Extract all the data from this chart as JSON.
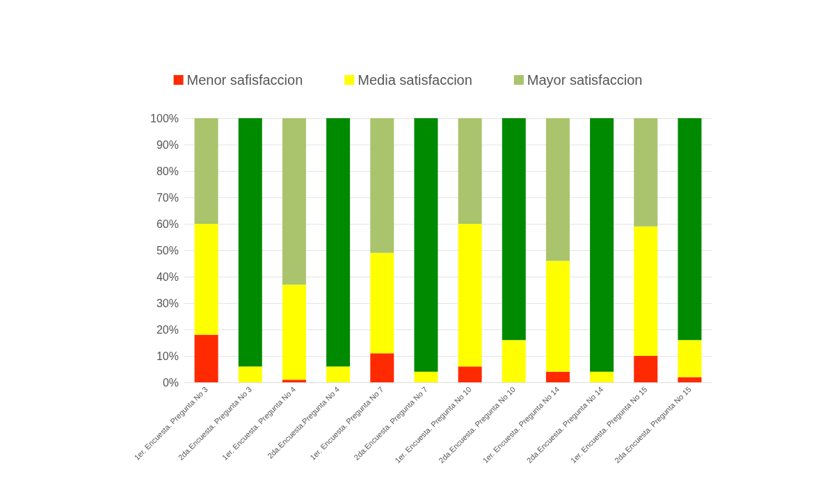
{
  "chart_data": {
    "type": "bar",
    "stacked": true,
    "categories": [
      "1er. Encuesta. Pregunta No 3",
      "2da.Encuesta. Pregunta No 3",
      "1er. Encuesta. Pregunta No 4",
      "2da.Encuesta.Pregunta No 4",
      "1er. Encuesta. Pregunta No 7",
      "2da.Encuesta. Pregunta No 7",
      "1er. Encuesta. Pregunta No 10",
      "2da.Encuesta. Pregunta No 10",
      "1er. Encuesta. Pregunta No 14",
      "2da.Encuesta. Pregunta No 14",
      "1er. Encuesta. Pregunta No 15",
      "2da.Encuesta. Pregunta No 15"
    ],
    "series": [
      {
        "name": "Menor safisfaccion",
        "color": "#ff2a00",
        "values": [
          18,
          0,
          1,
          0,
          11,
          0,
          6,
          0,
          4,
          0,
          10,
          2
        ]
      },
      {
        "name": "Media satisfaccion",
        "color": "#ffff00",
        "values": [
          42,
          6,
          36,
          6,
          38,
          4,
          54,
          16,
          42,
          4,
          49,
          14
        ]
      },
      {
        "name": "Mayor satisfaccion",
        "color": "#a9c46c",
        "colors": [
          "#a9c46c",
          "#008a00",
          "#a9c46c",
          "#008a00",
          "#a9c46c",
          "#008a00",
          "#a9c46c",
          "#008a00",
          "#a9c46c",
          "#008a00",
          "#a9c46c",
          "#008a00"
        ],
        "values": [
          40,
          94,
          63,
          94,
          51,
          96,
          40,
          84,
          54,
          96,
          41,
          84
        ]
      }
    ],
    "ylim": [
      0,
      100
    ],
    "yticks": [
      {
        "value": 0,
        "label": "0%"
      },
      {
        "value": 10,
        "label": "10%"
      },
      {
        "value": 20,
        "label": "20%"
      },
      {
        "value": 30,
        "label": "30%"
      },
      {
        "value": 40,
        "label": "40%"
      },
      {
        "value": 50,
        "label": "50%"
      },
      {
        "value": 60,
        "label": "60%"
      },
      {
        "value": 70,
        "label": "70%"
      },
      {
        "value": 80,
        "label": "80%"
      },
      {
        "value": 90,
        "label": "90%"
      },
      {
        "value": 100,
        "label": "100%"
      }
    ],
    "grid": "y",
    "legend": "top"
  }
}
